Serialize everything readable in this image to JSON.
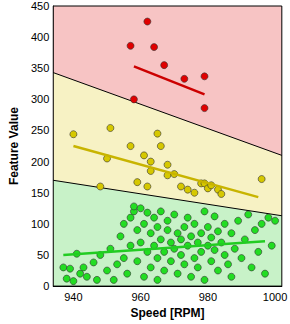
{
  "chart_data": {
    "type": "scatter",
    "xlabel": "Speed [RPM]",
    "ylabel": "Feature Value",
    "xlim": [
      934,
      1002
    ],
    "xticks": [
      940,
      960,
      980,
      1000
    ],
    "ylim": [
      0,
      450
    ],
    "yticks": [
      0,
      50,
      100,
      150,
      200,
      250,
      300,
      350,
      400,
      450
    ],
    "grid": false,
    "series": [
      {
        "type": "area",
        "color": "#f7c4c4",
        "line_style": "none",
        "x": [
          934,
          1002
        ],
        "values": [
          450,
          450
        ]
      },
      {
        "type": "area",
        "color": "#f7f2c4",
        "line_style": "solid",
        "x": [
          934,
          1002
        ],
        "values": [
          343,
          210
        ]
      },
      {
        "type": "area",
        "color": "#c8f2c8",
        "line_style": "solid",
        "x": [
          934,
          1002
        ],
        "values": [
          170,
          113
        ]
      },
      {
        "type": "scatter",
        "marker": "circle",
        "color": "#e00000",
        "x": [
          957,
          962,
          964,
          958,
          967,
          973,
          979,
          979
        ],
        "values": [
          386,
          425,
          384,
          300,
          355,
          333,
          337,
          286
        ]
      },
      {
        "type": "scatter",
        "marker": "circle",
        "color": "#d6c800",
        "x": [
          940,
          948,
          950,
          951,
          957,
          959,
          961,
          962,
          963,
          965,
          966,
          968,
          970,
          972,
          974,
          976,
          978,
          979,
          980,
          981,
          983,
          984,
          996,
          963,
          968
        ],
        "values": [
          244,
          160,
          205,
          254,
          225,
          167,
          210,
          160,
          200,
          245,
          225,
          178,
          180,
          160,
          155,
          150,
          165,
          165,
          157,
          162,
          155,
          148,
          172,
          185,
          195
        ]
      },
      {
        "type": "scatter",
        "marker": "circle",
        "color": "#22dd22",
        "x": [
          937,
          938,
          939,
          940,
          941,
          942,
          943,
          944,
          946,
          947,
          948,
          950,
          951,
          952,
          953,
          954,
          955,
          955,
          956,
          957,
          957,
          958,
          958,
          959,
          959,
          960,
          960,
          961,
          961,
          962,
          962,
          963,
          963,
          964,
          964,
          965,
          965,
          965,
          966,
          966,
          967,
          967,
          968,
          968,
          969,
          969,
          970,
          970,
          971,
          971,
          972,
          972,
          973,
          973,
          974,
          974,
          975,
          975,
          976,
          976,
          977,
          977,
          978,
          978,
          979,
          979,
          980,
          980,
          981,
          981,
          982,
          982,
          983,
          983,
          984,
          985,
          985,
          986,
          987,
          987,
          988,
          989,
          990,
          991,
          992,
          993,
          994,
          995,
          996,
          997,
          998,
          999,
          1000
        ],
        "values": [
          30,
          12,
          28,
          8,
          52,
          20,
          30,
          15,
          38,
          10,
          50,
          25,
          60,
          10,
          35,
          80,
          45,
          100,
          20,
          110,
          65,
          120,
          128,
          90,
          40,
          125,
          70,
          100,
          15,
          118,
          55,
          85,
          30,
          110,
          65,
          95,
          45,
          10,
          75,
          120,
          55,
          25,
          90,
          105,
          70,
          40,
          60,
          115,
          85,
          20,
          75,
          50,
          95,
          35,
          110,
          65,
          80,
          15,
          45,
          100,
          70,
          30,
          85,
          55,
          120,
          10,
          65,
          95,
          40,
          78,
          58,
          112,
          25,
          88,
          70,
          50,
          100,
          35,
          85,
          15,
          60,
          105,
          45,
          75,
          115,
          30,
          90,
          55,
          100,
          20,
          110,
          65,
          105
        ]
      },
      {
        "type": "line",
        "color": "#cc0000",
        "line_style": "solid",
        "x": [
          958,
          979
        ],
        "values": [
          353,
          308
        ]
      },
      {
        "type": "line",
        "color": "#c8b400",
        "line_style": "solid",
        "x": [
          940,
          995
        ],
        "values": [
          225,
          143
        ]
      },
      {
        "type": "line",
        "color": "#22cc22",
        "line_style": "solid",
        "x": [
          937,
          997
        ],
        "values": [
          50,
          72
        ]
      }
    ]
  }
}
